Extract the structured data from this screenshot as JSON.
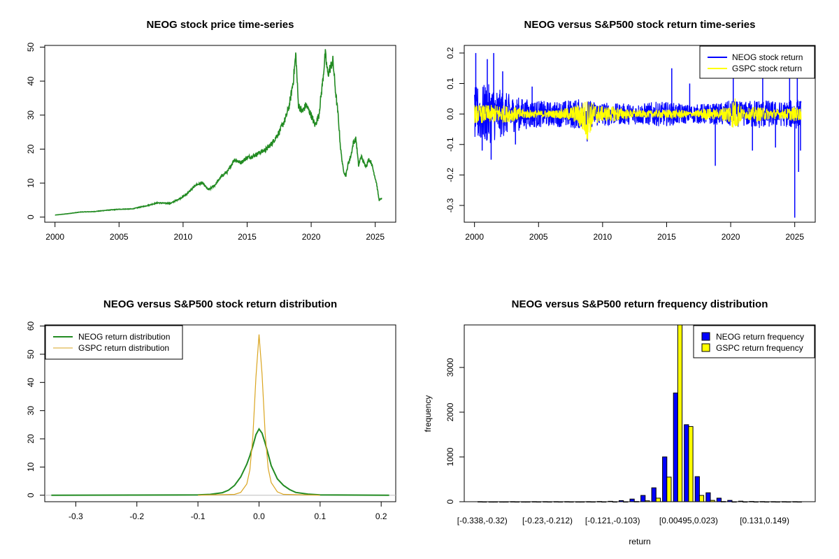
{
  "chart_data": [
    {
      "type": "line",
      "title": "NEOG stock price time-series",
      "xlabel": "",
      "ylabel": "",
      "xlim": [
        1999.2,
        2026.6
      ],
      "ylim": [
        -1.5,
        50.5
      ],
      "x_ticks": [
        2000,
        2005,
        2010,
        2015,
        2020,
        2025
      ],
      "y_ticks": [
        0,
        10,
        20,
        30,
        40,
        50
      ],
      "grid": false,
      "colors": {
        "line": "#228B22"
      },
      "series": [
        {
          "x": [
            2000.0,
            2001.0,
            2002.0,
            2003.0,
            2004.0,
            2005.0,
            2006.0,
            2007.0,
            2008.0,
            2009.0,
            2010.0,
            2010.5,
            2011.0,
            2011.5,
            2012.0,
            2012.5,
            2013.0,
            2013.5,
            2014.0,
            2014.5,
            2015.0,
            2015.5,
            2016.0,
            2016.5,
            2017.0,
            2017.5,
            2018.0,
            2018.3,
            2018.6,
            2018.8,
            2019.0,
            2019.3,
            2019.6,
            2020.0,
            2020.3,
            2020.6,
            2020.9,
            2021.1,
            2021.3,
            2021.5,
            2021.7,
            2021.9,
            2022.1,
            2022.3,
            2022.5,
            2022.7,
            2022.9,
            2023.1,
            2023.3,
            2023.5,
            2023.7,
            2023.9,
            2024.1,
            2024.3,
            2024.5,
            2024.7,
            2024.9,
            2025.1,
            2025.3,
            2025.5
          ],
          "values": [
            0.6,
            1.0,
            1.5,
            1.6,
            2.0,
            2.3,
            2.4,
            3.2,
            4.2,
            4.0,
            6.0,
            7.5,
            9.5,
            10.0,
            8.0,
            9.5,
            12.0,
            13.5,
            17.0,
            16.0,
            17.5,
            18.0,
            19.0,
            20.0,
            22.0,
            25.0,
            29.0,
            33.0,
            40.0,
            48.0,
            33.0,
            31.0,
            33.0,
            30.0,
            27.0,
            30.0,
            40.0,
            48.0,
            42.0,
            44.0,
            46.0,
            37.0,
            30.0,
            20.0,
            14.0,
            12.0,
            16.0,
            18.0,
            22.0,
            23.0,
            15.0,
            18.0,
            16.0,
            15.0,
            17.0,
            16.0,
            13.0,
            10.0,
            5.0,
            5.5
          ]
        }
      ]
    },
    {
      "type": "line",
      "title": "NEOG versus S&P500 stock return time-series",
      "xlabel": "",
      "ylabel": "",
      "xlim": [
        1999.2,
        2026.6
      ],
      "ylim": [
        -0.355,
        0.225
      ],
      "x_ticks": [
        2000,
        2005,
        2010,
        2015,
        2020,
        2025
      ],
      "y_ticks": [
        0.2,
        0.1,
        0.0,
        -0.1,
        -0.2,
        -0.3
      ],
      "y_tick_labels": [
        "0.2",
        "0.1",
        "0.0",
        "-0.1",
        "-0.2",
        "-0.3"
      ],
      "grid": false,
      "legend_position": "top-right",
      "series": [
        {
          "name": "NEOG stock return",
          "color": "#0000FF",
          "envelope": {
            "x": [
              2000,
              2001,
              2002,
              2003,
              2004,
              2005,
              2006,
              2007,
              2008,
              2009,
              2010,
              2011,
              2012,
              2013,
              2014,
              2015,
              2016,
              2017,
              2018,
              2019,
              2020,
              2021,
              2022,
              2023,
              2024,
              2025,
              2025.5
            ],
            "upper": [
              0.09,
              0.1,
              0.08,
              0.06,
              0.05,
              0.045,
              0.04,
              0.045,
              0.05,
              0.045,
              0.04,
              0.035,
              0.035,
              0.035,
              0.04,
              0.04,
              0.035,
              0.03,
              0.035,
              0.035,
              0.045,
              0.04,
              0.05,
              0.045,
              0.04,
              0.05,
              0.05
            ],
            "lower": [
              -0.09,
              -0.1,
              -0.08,
              -0.06,
              -0.05,
              -0.045,
              -0.04,
              -0.045,
              -0.05,
              -0.045,
              -0.04,
              -0.035,
              -0.035,
              -0.035,
              -0.04,
              -0.04,
              -0.035,
              -0.03,
              -0.035,
              -0.035,
              -0.045,
              -0.04,
              -0.05,
              -0.045,
              -0.04,
              -0.05,
              -0.05
            ]
          },
          "spikes": [
            {
              "x": 2000.1,
              "y": 0.2
            },
            {
              "x": 2000.6,
              "y": -0.12
            },
            {
              "x": 2001.0,
              "y": 0.18
            },
            {
              "x": 2001.5,
              "y": 0.2
            },
            {
              "x": 2001.3,
              "y": -0.15
            },
            {
              "x": 2002.2,
              "y": 0.14
            },
            {
              "x": 2003.2,
              "y": -0.1
            },
            {
              "x": 2004.5,
              "y": 0.09
            },
            {
              "x": 2008.8,
              "y": -0.09
            },
            {
              "x": 2015.4,
              "y": 0.15
            },
            {
              "x": 2016.8,
              "y": 0.1
            },
            {
              "x": 2018.8,
              "y": -0.17
            },
            {
              "x": 2020.2,
              "y": 0.12
            },
            {
              "x": 2021.7,
              "y": -0.12
            },
            {
              "x": 2022.5,
              "y": 0.12
            },
            {
              "x": 2023.5,
              "y": -0.11
            },
            {
              "x": 2024.6,
              "y": 0.12
            },
            {
              "x": 2025.0,
              "y": -0.34
            },
            {
              "x": 2025.2,
              "y": 0.14
            },
            {
              "x": 2025.3,
              "y": -0.19
            },
            {
              "x": 2025.45,
              "y": -0.12
            }
          ]
        },
        {
          "name": "GSPC stock return",
          "color": "#FFFF00",
          "envelope": {
            "x": [
              2000,
              2001,
              2002,
              2003,
              2004,
              2005,
              2006,
              2007,
              2008,
              2008.8,
              2009.3,
              2010,
              2011,
              2012,
              2013,
              2014,
              2015,
              2016,
              2017,
              2018,
              2019,
              2020,
              2020.3,
              2021,
              2022,
              2023,
              2024,
              2025,
              2025.5
            ],
            "upper": [
              0.03,
              0.03,
              0.03,
              0.025,
              0.015,
              0.012,
              0.012,
              0.018,
              0.03,
              0.05,
              0.035,
              0.025,
              0.025,
              0.015,
              0.012,
              0.012,
              0.015,
              0.015,
              0.008,
              0.02,
              0.015,
              0.035,
              0.06,
              0.015,
              0.025,
              0.018,
              0.015,
              0.025,
              0.02
            ],
            "lower": [
              -0.03,
              -0.03,
              -0.03,
              -0.025,
              -0.015,
              -0.012,
              -0.012,
              -0.018,
              -0.03,
              -0.09,
              -0.035,
              -0.025,
              -0.025,
              -0.015,
              -0.012,
              -0.012,
              -0.015,
              -0.015,
              -0.008,
              -0.02,
              -0.015,
              -0.035,
              -0.06,
              -0.015,
              -0.025,
              -0.018,
              -0.015,
              -0.025,
              -0.02
            ]
          }
        }
      ]
    },
    {
      "type": "line",
      "title": "NEOG versus S&P500 stock return distribution",
      "xlabel": "",
      "ylabel": "",
      "xlim": [
        -0.3508,
        0.2238
      ],
      "ylim": [
        -2.3,
        60.4
      ],
      "x_ticks": [
        -0.3,
        -0.2,
        -0.1,
        0.0,
        0.1,
        0.2
      ],
      "x_tick_labels": [
        "-0.3",
        "-0.2",
        "-0.1",
        "0.0",
        "0.1",
        "0.2"
      ],
      "y_ticks": [
        0,
        10,
        20,
        30,
        40,
        50,
        60
      ],
      "grid": false,
      "legend_position": "top-left",
      "baseline": {
        "y": 0,
        "color": "#BEBEBE"
      },
      "series": [
        {
          "name": "NEOG return distribution",
          "color": "#228B22",
          "x": [
            -0.34,
            -0.1,
            -0.08,
            -0.06,
            -0.05,
            -0.04,
            -0.03,
            -0.02,
            -0.015,
            -0.01,
            -0.005,
            0.0,
            0.005,
            0.01,
            0.015,
            0.02,
            0.03,
            0.04,
            0.05,
            0.06,
            0.08,
            0.1,
            0.213
          ],
          "values": [
            0,
            0.1,
            0.3,
            0.9,
            1.8,
            3.5,
            6.5,
            11.0,
            14.0,
            17.5,
            21.5,
            23.5,
            22.0,
            18.5,
            14.5,
            10.5,
            5.8,
            3.5,
            2.0,
            1.0,
            0.4,
            0.1,
            0
          ]
        },
        {
          "name": "GSPC return distribution",
          "color": "#DAA520",
          "x": [
            -0.1,
            -0.04,
            -0.03,
            -0.02,
            -0.015,
            -0.01,
            -0.005,
            0.0,
            0.005,
            0.01,
            0.015,
            0.02,
            0.03,
            0.04,
            0.1
          ],
          "values": [
            0,
            0.3,
            1.0,
            4.0,
            9.0,
            21.0,
            42.0,
            57.0,
            43.0,
            22.0,
            9.5,
            4.5,
            1.2,
            0.3,
            0
          ]
        }
      ]
    },
    {
      "type": "bar",
      "title": "NEOG versus S&P500 return frequency distribution",
      "xlabel": "return",
      "ylabel": "frequency",
      "ylim": [
        0,
        3950
      ],
      "y_ticks": [
        0,
        1000,
        2000,
        3000
      ],
      "shown_category_labels": [
        "[-0.338,-0.32)",
        "[-0.23,-0.212)",
        "[-0.121,-0.103)",
        "[0.00495,0.023)",
        "[0.131,0.149)"
      ],
      "legend_position": "top-right",
      "n_bins": 30,
      "label_bins": [
        0,
        6,
        12,
        19,
        26
      ],
      "series": [
        {
          "name": "NEOG return frequency",
          "color": "#0000FF",
          "values": [
            1,
            0,
            0,
            1,
            0,
            1,
            1,
            1,
            1,
            0,
            2,
            5,
            10,
            25,
            60,
            140,
            310,
            1000,
            2430,
            1720,
            560,
            200,
            80,
            30,
            12,
            6,
            3,
            1,
            1,
            1
          ]
        },
        {
          "name": "GSPC return frequency",
          "color": "#FFFF00",
          "values": [
            0,
            0,
            0,
            0,
            0,
            0,
            0,
            0,
            0,
            0,
            0,
            0,
            0,
            0,
            5,
            20,
            80,
            550,
            3950,
            1680,
            140,
            30,
            5,
            0,
            0,
            0,
            0,
            0,
            0,
            0
          ]
        }
      ]
    }
  ]
}
